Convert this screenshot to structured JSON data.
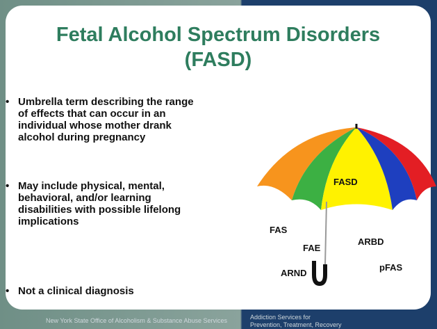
{
  "title": [
    "Fetal Alcohol Spectrum Disorders",
    "(FASD)"
  ],
  "bullets": [
    "Umbrella term describing the range of effects that can occur in an individual whose mother drank alcohol during pregnancy",
    "May include physical, mental, behavioral, and/or learning disabilities with possible lifelong implications",
    "Not a clinical diagnosis"
  ],
  "umbrella": {
    "labels": [
      "FASD",
      "FAS",
      "FAE",
      "ARBD",
      "ARND",
      "pFAS"
    ]
  },
  "footer": {
    "left": "New York State Office of Alcoholism & Substance Abuse Services",
    "right": [
      "Addiction Services for",
      "Prevention, Treatment, Recovery"
    ]
  }
}
